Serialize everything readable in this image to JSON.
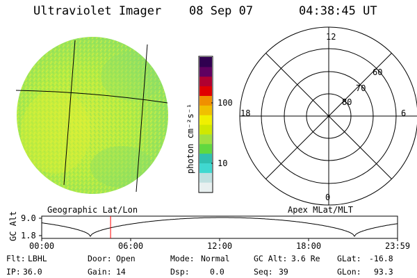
{
  "header": {
    "instrument": "Ultraviolet Imager",
    "date": "08 Sep 07",
    "time": "04:38:45 UT"
  },
  "image_panel": {
    "grid_caption": "Geographic Lat/Lon",
    "colors": {
      "disk_base": "#a8ec44",
      "grid_line": "#000000"
    }
  },
  "colorbar": {
    "unit_label": "photon cm⁻²s⁻¹",
    "tick_labels": [
      "100",
      "10"
    ],
    "scale": "log",
    "colors": [
      "#e8f0f0",
      "#c0e0e0",
      "#40d8d0",
      "#30c0b0",
      "#60d840",
      "#a0e040",
      "#d0e800",
      "#f0f000",
      "#f0c000",
      "#f09000",
      "#e00000",
      "#b00030",
      "#600060",
      "#300050"
    ]
  },
  "polar_panel": {
    "caption": "Apex MLat/MLT",
    "mlt_labels": {
      "top": "12",
      "left": "18",
      "right": "6",
      "bottom": "0"
    },
    "lat_labels": [
      "60",
      "70",
      "80"
    ]
  },
  "orbit_plot": {
    "ylabel": "GC Alt",
    "y_ticks": [
      "9.0",
      "1.8"
    ],
    "x_ticks": [
      "00:00",
      "06:00",
      "12:00",
      "18:00",
      "23:59"
    ],
    "marker_time": "04:38:45",
    "marker_color": "#ff0000"
  },
  "status": [
    [
      {
        "label": "Flt:",
        "value": "LBHL"
      },
      {
        "label": "Door:",
        "value": "Open"
      },
      {
        "label": "Mode:",
        "value": "Normal"
      },
      {
        "label": "GC Alt:",
        "value": "3.6 Re"
      },
      {
        "label": "GLat:",
        "value": "-16.8"
      }
    ],
    [
      {
        "label": "IP:",
        "value": "36.0"
      },
      {
        "label": "Gain:",
        "value": "14"
      },
      {
        "label": "Dsp:",
        "value": "0.0"
      },
      {
        "label": "Seq:",
        "value": "39"
      },
      {
        "label": "GLon:",
        "value": "93.3"
      }
    ]
  ]
}
